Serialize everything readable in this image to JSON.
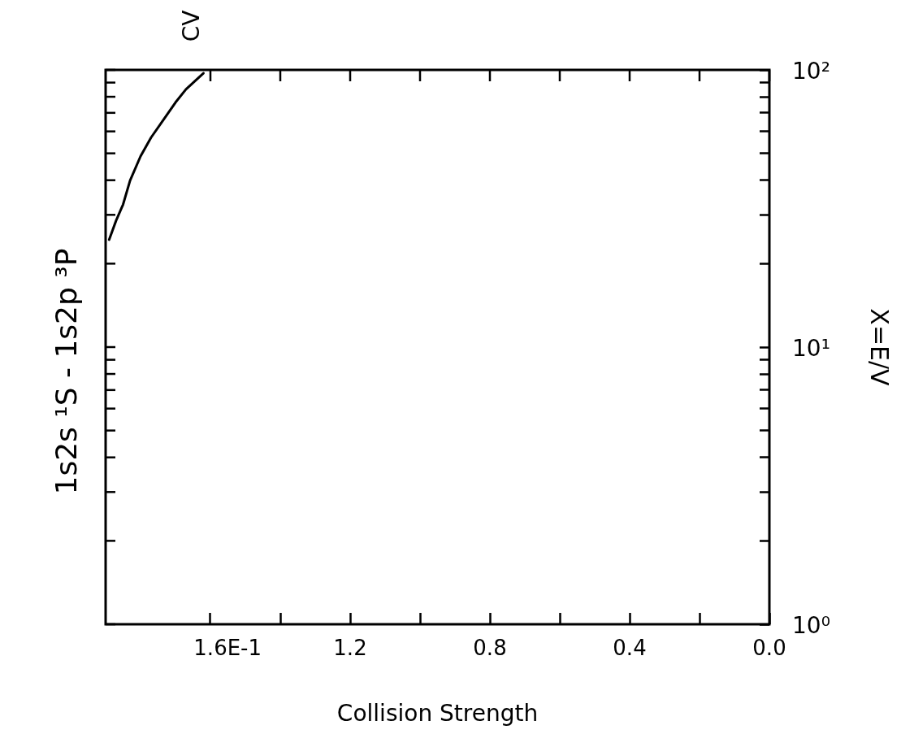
{
  "chart_data": {
    "type": "line",
    "title": "1s2s ¹S - 1s2p ³P",
    "xlabel": "Collision Strength",
    "ylabel": "X=E/V",
    "annotations": [
      "CV",
      "E-1"
    ],
    "x": [
      1.89,
      1.87,
      1.85,
      1.83,
      1.8,
      1.77,
      1.73,
      1.7,
      1.67,
      1.62
    ],
    "values": [
      24.4,
      28.6,
      32.7,
      39.9,
      48.8,
      57,
      67.3,
      76.3,
      85.1,
      97.3
    ],
    "color": "#000000",
    "marker": "none",
    "line_style": "solid",
    "log": "y",
    "xlim": [
      1.9,
      0
    ],
    "xticks": [
      1.6,
      {
        "value": 1.4,
        "label": null
      },
      1.2,
      {
        "value": 1.0,
        "label": null
      },
      0.8,
      {
        "value": 0.6,
        "label": null
      },
      0.4,
      {
        "value": 0.2,
        "label": null
      },
      {
        "value": 0,
        "label": "0.0"
      }
    ],
    "ylim": [
      1,
      100
    ],
    "yticks": [
      {
        "value": 1,
        "label": "10⁰"
      },
      {
        "value": 2,
        "label": null
      },
      {
        "value": 3,
        "label": null
      },
      {
        "value": 4,
        "label": null
      },
      {
        "value": 5,
        "label": null
      },
      {
        "value": 6,
        "label": null
      },
      {
        "value": 7,
        "label": null
      },
      {
        "value": 8,
        "label": null
      },
      {
        "value": 9,
        "label": null
      },
      {
        "value": 10,
        "label": "10¹"
      },
      {
        "value": 20,
        "label": null
      },
      {
        "value": 30,
        "label": null
      },
      {
        "value": 40,
        "label": null
      },
      {
        "value": 50,
        "label": null
      },
      {
        "value": 60,
        "label": null
      },
      {
        "value": 70,
        "label": null
      },
      {
        "value": 80,
        "label": null
      },
      {
        "value": 90,
        "label": null
      },
      {
        "value": 100,
        "label": "10²"
      }
    ]
  }
}
